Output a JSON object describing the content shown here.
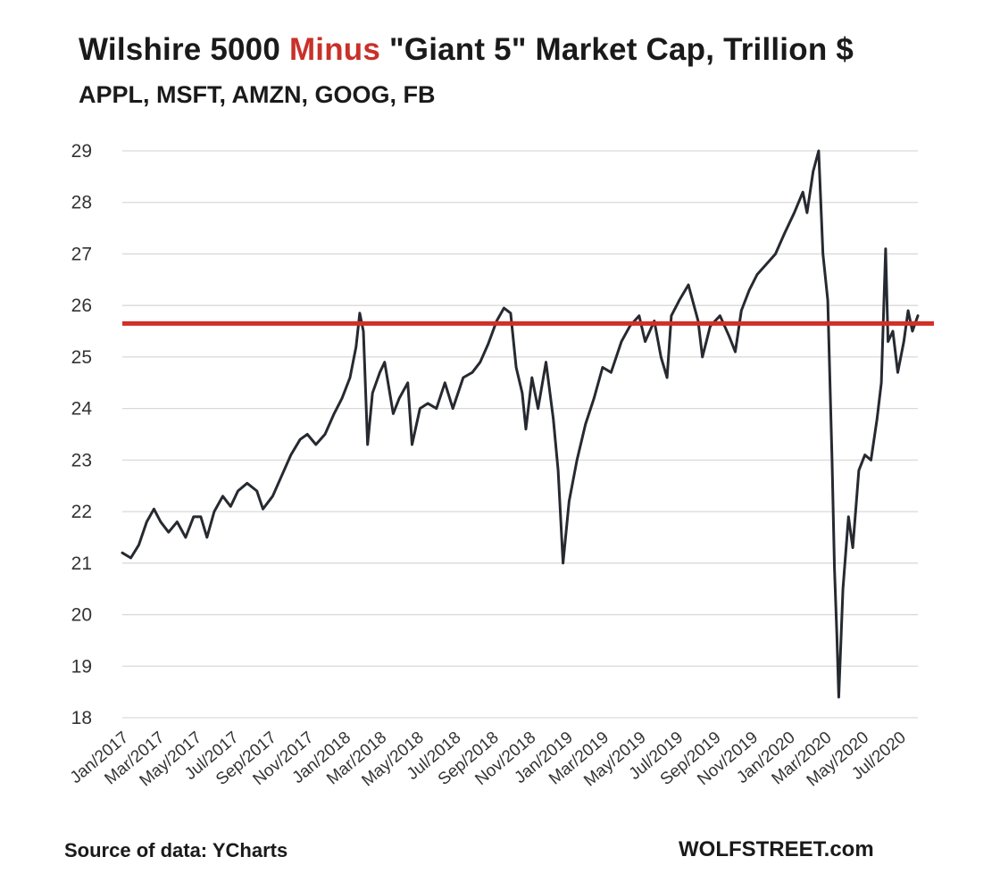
{
  "header": {
    "title_part1": "Wilshire 5000",
    "title_highlight": "Minus",
    "title_part2": "\"Giant 5\" Market Cap, Trillion $",
    "subtitle": "APPL, MSFT, AMZN, GOOG, FB"
  },
  "footer": {
    "source": "Source of data: YCharts",
    "brand": "WOLFSTREET.com"
  },
  "colors": {
    "line": "#262a30",
    "reference_line": "#d12f27",
    "highlight_text": "#c8312a",
    "grid": "#d9d9d9"
  },
  "chart_data": {
    "type": "line",
    "title": "Wilshire 5000 Minus \"Giant 5\" Market Cap, Trillion $",
    "subtitle": "APPL, MSFT, AMZN, GOOG, FB",
    "ylim": [
      18,
      29
    ],
    "yticks": [
      18,
      19,
      20,
      21,
      22,
      23,
      24,
      25,
      26,
      27,
      28,
      29
    ],
    "x_start": "2017-01-01",
    "x_end": "2020-07-31",
    "xticks": [
      "Jan/2017",
      "Mar/2017",
      "May/2017",
      "Jul/2017",
      "Sep/2017",
      "Nov/2017",
      "Jan/2018",
      "Mar/2018",
      "May/2018",
      "Jul/2018",
      "Sep/2018",
      "Nov/2018",
      "Jan/2019",
      "Mar/2019",
      "May/2019",
      "Jul/2019",
      "Sep/2019",
      "Nov/2019",
      "Jan/2020",
      "Mar/2020",
      "May/2020",
      "Jul/2020"
    ],
    "grid": true,
    "reference_line": 25.65,
    "series": [
      {
        "points": [
          [
            "2017-01-01",
            21.2
          ],
          [
            "2017-01-15",
            21.1
          ],
          [
            "2017-01-28",
            21.35
          ],
          [
            "2017-02-10",
            21.8
          ],
          [
            "2017-02-22",
            22.05
          ],
          [
            "2017-03-05",
            21.8
          ],
          [
            "2017-03-18",
            21.6
          ],
          [
            "2017-04-01",
            21.8
          ],
          [
            "2017-04-15",
            21.5
          ],
          [
            "2017-04-28",
            21.9
          ],
          [
            "2017-05-10",
            21.9
          ],
          [
            "2017-05-20",
            21.5
          ],
          [
            "2017-06-01",
            22.0
          ],
          [
            "2017-06-15",
            22.3
          ],
          [
            "2017-06-28",
            22.1
          ],
          [
            "2017-07-10",
            22.4
          ],
          [
            "2017-07-25",
            22.55
          ],
          [
            "2017-08-10",
            22.4
          ],
          [
            "2017-08-20",
            22.05
          ],
          [
            "2017-09-05",
            22.3
          ],
          [
            "2017-09-20",
            22.7
          ],
          [
            "2017-10-05",
            23.1
          ],
          [
            "2017-10-20",
            23.4
          ],
          [
            "2017-11-01",
            23.5
          ],
          [
            "2017-11-15",
            23.3
          ],
          [
            "2017-11-30",
            23.5
          ],
          [
            "2017-12-15",
            23.9
          ],
          [
            "2017-12-28",
            24.2
          ],
          [
            "2018-01-10",
            24.6
          ],
          [
            "2018-01-20",
            25.2
          ],
          [
            "2018-01-26",
            25.85
          ],
          [
            "2018-02-01",
            25.5
          ],
          [
            "2018-02-08",
            23.3
          ],
          [
            "2018-02-16",
            24.3
          ],
          [
            "2018-02-28",
            24.7
          ],
          [
            "2018-03-08",
            24.9
          ],
          [
            "2018-03-22",
            23.9
          ],
          [
            "2018-04-01",
            24.2
          ],
          [
            "2018-04-15",
            24.5
          ],
          [
            "2018-04-22",
            23.3
          ],
          [
            "2018-05-05",
            24.0
          ],
          [
            "2018-05-18",
            24.1
          ],
          [
            "2018-06-01",
            24.0
          ],
          [
            "2018-06-15",
            24.5
          ],
          [
            "2018-06-28",
            24.0
          ],
          [
            "2018-07-15",
            24.6
          ],
          [
            "2018-07-30",
            24.7
          ],
          [
            "2018-08-12",
            24.9
          ],
          [
            "2018-08-25",
            25.25
          ],
          [
            "2018-09-08",
            25.7
          ],
          [
            "2018-09-20",
            25.95
          ],
          [
            "2018-10-01",
            25.85
          ],
          [
            "2018-10-10",
            24.8
          ],
          [
            "2018-10-20",
            24.3
          ],
          [
            "2018-10-26",
            23.6
          ],
          [
            "2018-11-05",
            24.6
          ],
          [
            "2018-11-15",
            24.0
          ],
          [
            "2018-11-28",
            24.9
          ],
          [
            "2018-12-10",
            23.8
          ],
          [
            "2018-12-18",
            22.8
          ],
          [
            "2018-12-26",
            21.0
          ],
          [
            "2019-01-05",
            22.2
          ],
          [
            "2019-01-18",
            23.0
          ],
          [
            "2019-02-01",
            23.7
          ],
          [
            "2019-02-15",
            24.2
          ],
          [
            "2019-03-01",
            24.8
          ],
          [
            "2019-03-15",
            24.7
          ],
          [
            "2019-04-01",
            25.3
          ],
          [
            "2019-04-15",
            25.6
          ],
          [
            "2019-04-30",
            25.8
          ],
          [
            "2019-05-10",
            25.3
          ],
          [
            "2019-05-25",
            25.7
          ],
          [
            "2019-06-05",
            25.0
          ],
          [
            "2019-06-15",
            24.6
          ],
          [
            "2019-06-22",
            25.8
          ],
          [
            "2019-07-05",
            26.1
          ],
          [
            "2019-07-20",
            26.4
          ],
          [
            "2019-08-05",
            25.7
          ],
          [
            "2019-08-12",
            25.0
          ],
          [
            "2019-08-25",
            25.6
          ],
          [
            "2019-09-10",
            25.8
          ],
          [
            "2019-09-25",
            25.4
          ],
          [
            "2019-10-05",
            25.1
          ],
          [
            "2019-10-15",
            25.9
          ],
          [
            "2019-10-28",
            26.3
          ],
          [
            "2019-11-10",
            26.6
          ],
          [
            "2019-11-25",
            26.8
          ],
          [
            "2019-12-10",
            27.0
          ],
          [
            "2019-12-25",
            27.4
          ],
          [
            "2020-01-10",
            27.8
          ],
          [
            "2020-01-24",
            28.2
          ],
          [
            "2020-01-31",
            27.8
          ],
          [
            "2020-02-10",
            28.6
          ],
          [
            "2020-02-19",
            29.0
          ],
          [
            "2020-02-26",
            27.0
          ],
          [
            "2020-03-05",
            26.1
          ],
          [
            "2020-03-12",
            23.0
          ],
          [
            "2020-03-16",
            20.9
          ],
          [
            "2020-03-20",
            19.6
          ],
          [
            "2020-03-23",
            18.4
          ],
          [
            "2020-03-30",
            20.5
          ],
          [
            "2020-04-08",
            21.9
          ],
          [
            "2020-04-15",
            21.3
          ],
          [
            "2020-04-25",
            22.8
          ],
          [
            "2020-05-05",
            23.1
          ],
          [
            "2020-05-15",
            23.0
          ],
          [
            "2020-05-25",
            23.8
          ],
          [
            "2020-06-01",
            24.5
          ],
          [
            "2020-06-08",
            27.1
          ],
          [
            "2020-06-12",
            25.3
          ],
          [
            "2020-06-20",
            25.5
          ],
          [
            "2020-06-28",
            24.7
          ],
          [
            "2020-07-08",
            25.3
          ],
          [
            "2020-07-15",
            25.9
          ],
          [
            "2020-07-22",
            25.5
          ],
          [
            "2020-07-31",
            25.8
          ]
        ]
      }
    ]
  }
}
